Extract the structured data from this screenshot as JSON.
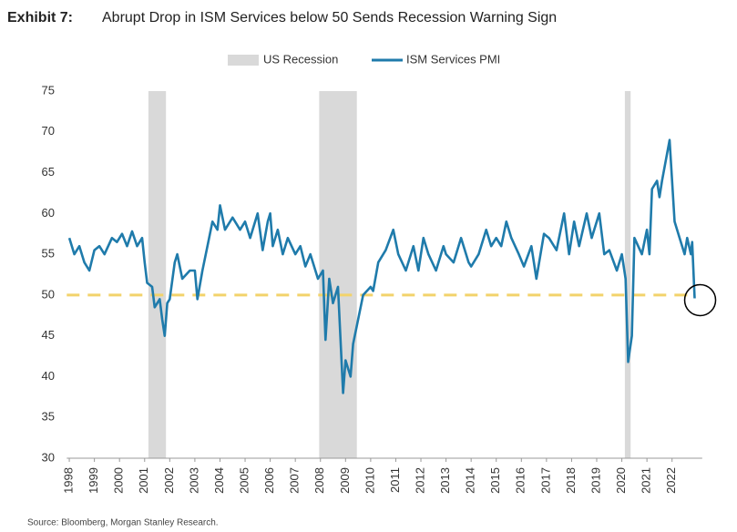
{
  "chart_data": {
    "type": "line",
    "title_label": "Exhibit 7:",
    "title": "Abrupt Drop in ISM Services below 50 Sends Recession Warning Sign",
    "source": "Source: Bloomberg, Morgan Stanley Research.",
    "xlim": [
      1997.9,
      2023.2
    ],
    "xticks": [
      1998,
      1999,
      2000,
      2001,
      2002,
      2003,
      2004,
      2005,
      2006,
      2007,
      2008,
      2009,
      2010,
      2011,
      2012,
      2013,
      2014,
      2015,
      2016,
      2017,
      2018,
      2019,
      2020,
      2021,
      2022
    ],
    "ylim": [
      30,
      75
    ],
    "yticks": [
      30,
      35,
      40,
      45,
      50,
      55,
      60,
      65,
      70,
      75
    ],
    "reference_line": 50,
    "reference_color": "#f2d36b",
    "recessions": {
      "name": "US Recession",
      "color": "#d9d9d9",
      "ranges": [
        [
          2001.15,
          2001.85
        ],
        [
          2007.95,
          2009.45
        ],
        [
          2020.12,
          2020.35
        ]
      ]
    },
    "series": [
      {
        "name": "ISM Services PMI",
        "color": "#1f7bab",
        "x": [
          1998.0,
          1998.2,
          1998.4,
          1998.6,
          1998.8,
          1999.0,
          1999.2,
          1999.4,
          1999.7,
          1999.9,
          2000.1,
          2000.3,
          2000.5,
          2000.7,
          2000.9,
          2001.0,
          2001.1,
          2001.3,
          2001.4,
          2001.6,
          2001.7,
          2001.8,
          2001.9,
          2002.0,
          2002.2,
          2002.3,
          2002.5,
          2002.8,
          2003.0,
          2003.1,
          2003.3,
          2003.5,
          2003.7,
          2003.9,
          2004.0,
          2004.2,
          2004.5,
          2004.8,
          2005.0,
          2005.2,
          2005.5,
          2005.7,
          2005.9,
          2006.0,
          2006.1,
          2006.3,
          2006.5,
          2006.7,
          2007.0,
          2007.2,
          2007.4,
          2007.6,
          2007.9,
          2008.1,
          2008.2,
          2008.35,
          2008.5,
          2008.7,
          2008.9,
          2009.0,
          2009.2,
          2009.3,
          2009.5,
          2009.7,
          2010.0,
          2010.1,
          2010.3,
          2010.6,
          2010.9,
          2011.1,
          2011.4,
          2011.7,
          2011.9,
          2012.1,
          2012.3,
          2012.6,
          2012.9,
          2013.0,
          2013.3,
          2013.6,
          2013.9,
          2014.0,
          2014.3,
          2014.6,
          2014.8,
          2015.0,
          2015.2,
          2015.4,
          2015.6,
          2015.9,
          2016.1,
          2016.4,
          2016.6,
          2016.9,
          2017.1,
          2017.4,
          2017.7,
          2017.9,
          2018.1,
          2018.3,
          2018.6,
          2018.8,
          2019.1,
          2019.3,
          2019.5,
          2019.8,
          2020.0,
          2020.15,
          2020.25,
          2020.4,
          2020.5,
          2020.8,
          2021.0,
          2021.1,
          2021.2,
          2021.4,
          2021.5,
          2021.6,
          2021.9,
          2022.1,
          2022.3,
          2022.5,
          2022.6,
          2022.75,
          2022.8,
          2022.9
        ],
        "values": [
          57,
          55,
          56,
          54,
          53,
          55.5,
          56,
          55,
          57,
          56.5,
          57.5,
          56,
          57.8,
          56,
          57,
          54,
          51.5,
          51,
          48.5,
          49.5,
          47,
          45,
          49,
          49.5,
          54,
          55,
          52,
          53,
          53,
          49.5,
          53,
          56,
          59,
          58,
          61,
          58,
          59.5,
          58,
          59,
          57,
          60,
          55.5,
          59,
          60,
          56,
          58,
          55,
          57,
          55,
          56,
          53.5,
          55,
          52,
          53,
          44.5,
          52,
          49,
          51,
          38,
          42,
          40,
          44,
          47,
          50,
          51,
          50.5,
          54,
          55.5,
          58,
          55,
          53,
          56,
          53,
          57,
          55,
          53,
          56,
          55,
          54,
          57,
          54,
          53.5,
          55,
          58,
          56,
          57,
          56,
          59,
          57,
          55,
          53.5,
          56,
          52,
          57.5,
          57,
          55.5,
          60,
          55,
          59,
          56,
          60,
          57,
          60,
          55,
          55.5,
          53,
          55,
          52,
          41.8,
          45,
          57,
          55,
          58,
          55,
          63,
          64,
          62,
          64,
          69,
          59,
          57,
          55,
          57,
          55,
          56.5,
          49.6
        ]
      }
    ]
  }
}
